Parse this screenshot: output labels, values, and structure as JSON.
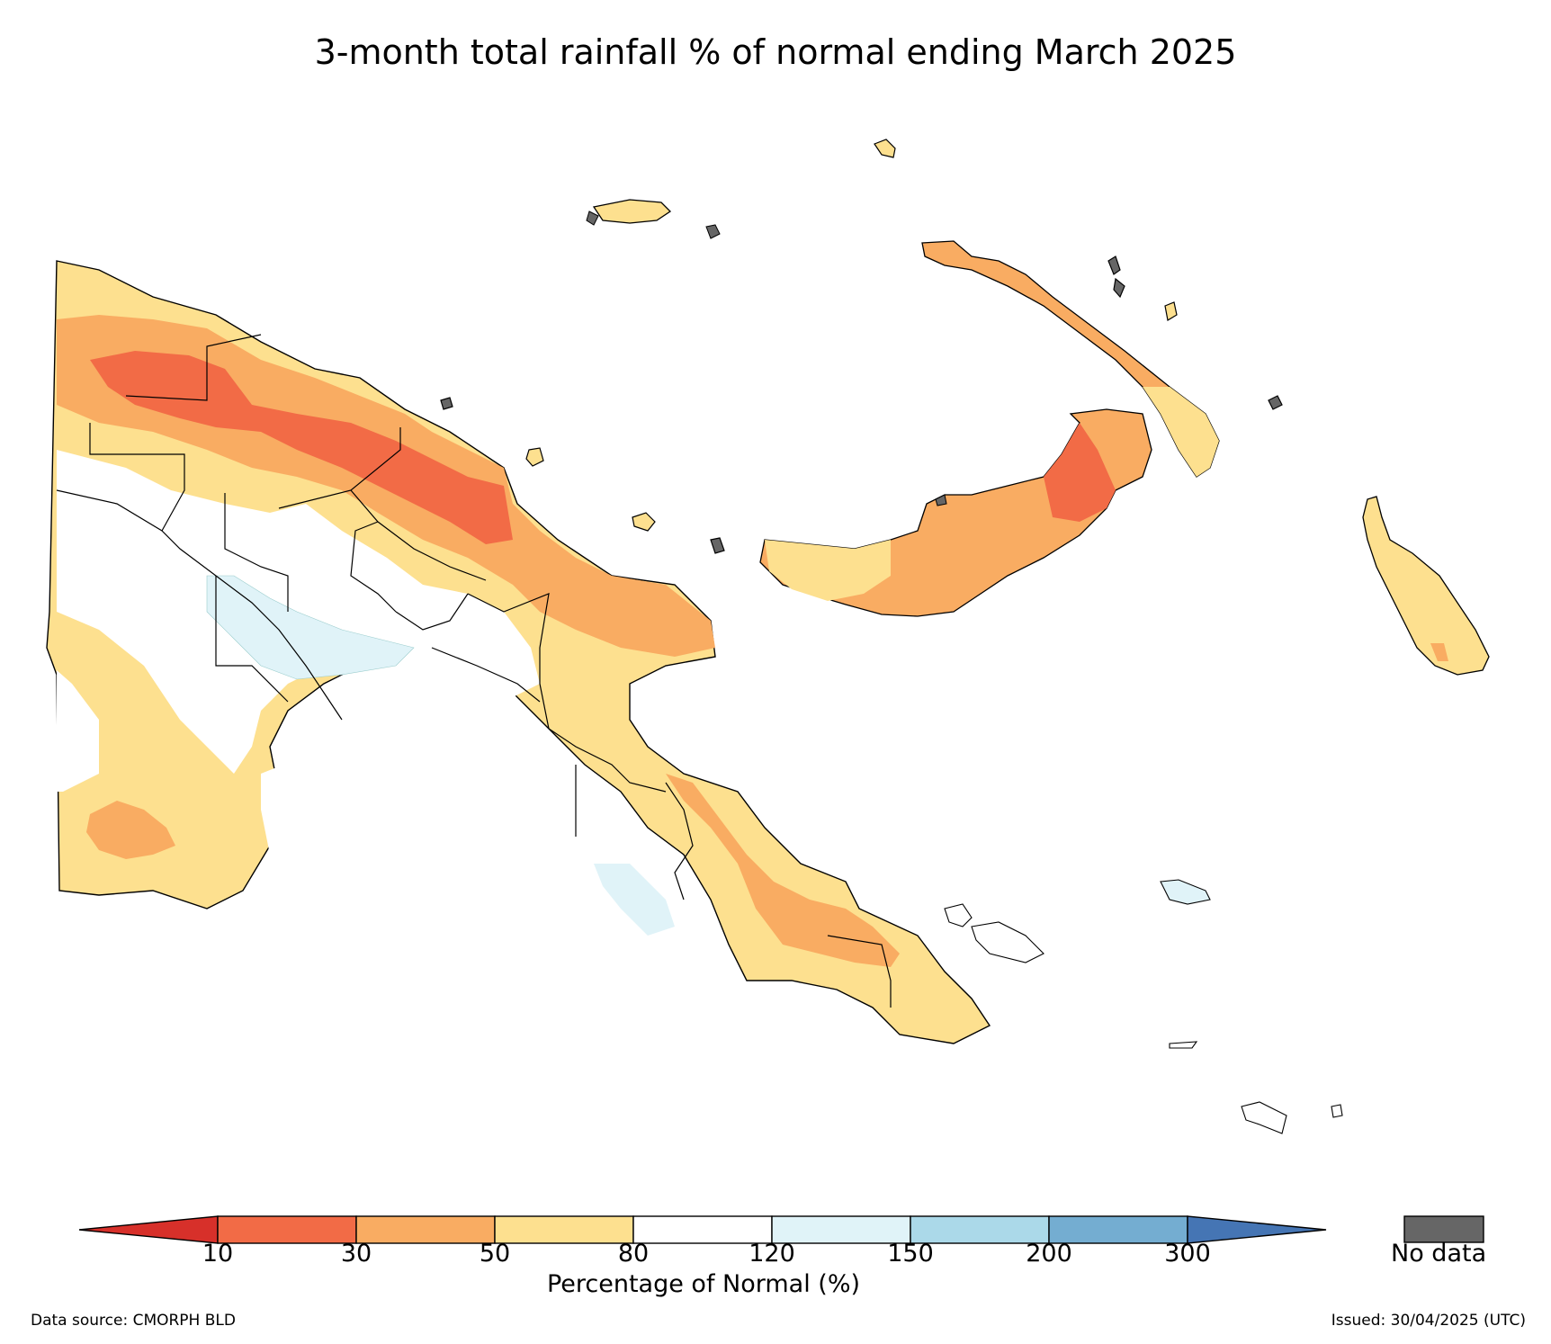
{
  "title": "3-month total rainfall % of normal ending March 2025",
  "colorbar": {
    "label": "Percentage of Normal (%)",
    "ticks": [
      "10",
      "30",
      "50",
      "80",
      "120",
      "150",
      "200",
      "300"
    ],
    "bins": [
      {
        "range": "<10",
        "color": "#d7302a"
      },
      {
        "range": "10-30",
        "color": "#f26b46"
      },
      {
        "range": "30-50",
        "color": "#f9ac62"
      },
      {
        "range": "50-80",
        "color": "#fde08f"
      },
      {
        "range": "80-120",
        "color": "#ffffff"
      },
      {
        "range": "120-150",
        "color": "#e0f3f8"
      },
      {
        "range": "150-200",
        "color": "#abd9e9"
      },
      {
        "range": "200-300",
        "color": "#74add1"
      },
      {
        "range": ">300",
        "color": "#4575b4"
      }
    ],
    "extend": "both"
  },
  "no_data": {
    "label": "No data",
    "color": "#666666"
  },
  "footer": {
    "source": "Data source: CMORPH BLD",
    "issued": "Issued: 30/04/2025 (UTC)"
  }
}
